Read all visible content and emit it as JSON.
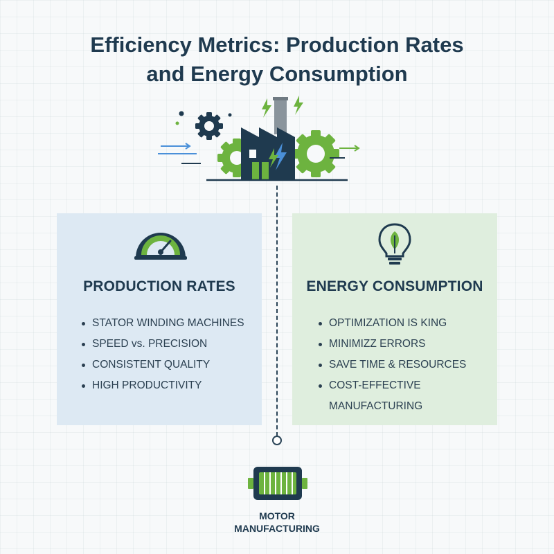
{
  "title": {
    "line1": "Efficiency Metrics: Production Rates",
    "line2": "and Energy Consumption"
  },
  "colors": {
    "navy": "#1f3a4f",
    "green": "#6db33f",
    "blue_accent": "#4a90d9",
    "card_left_bg": "#dde9f3",
    "card_right_bg": "#dfeede"
  },
  "production": {
    "icon": "speedometer-icon",
    "title": "PRODUCTION RATES",
    "items": [
      "STATOR WINDING MACHINES",
      "SPEED vs. PRECISION",
      "CONSISTENT QUALITY",
      "HIGH PRODUCTIVITY"
    ]
  },
  "energy": {
    "icon": "lightbulb-leaf-icon",
    "title": "ENERGY CONSUMPTION",
    "items": [
      "OPTIMIZATION IS KING",
      "MINIMIZZ ERRORS",
      "SAVE TIME & RESOURCES",
      "COST-EFFECTIVE",
      "MANUFACTURING"
    ]
  },
  "motor": {
    "icon": "motor-icon",
    "label_line1": "MOTOR",
    "label_line2": "MANUFACTURING"
  }
}
